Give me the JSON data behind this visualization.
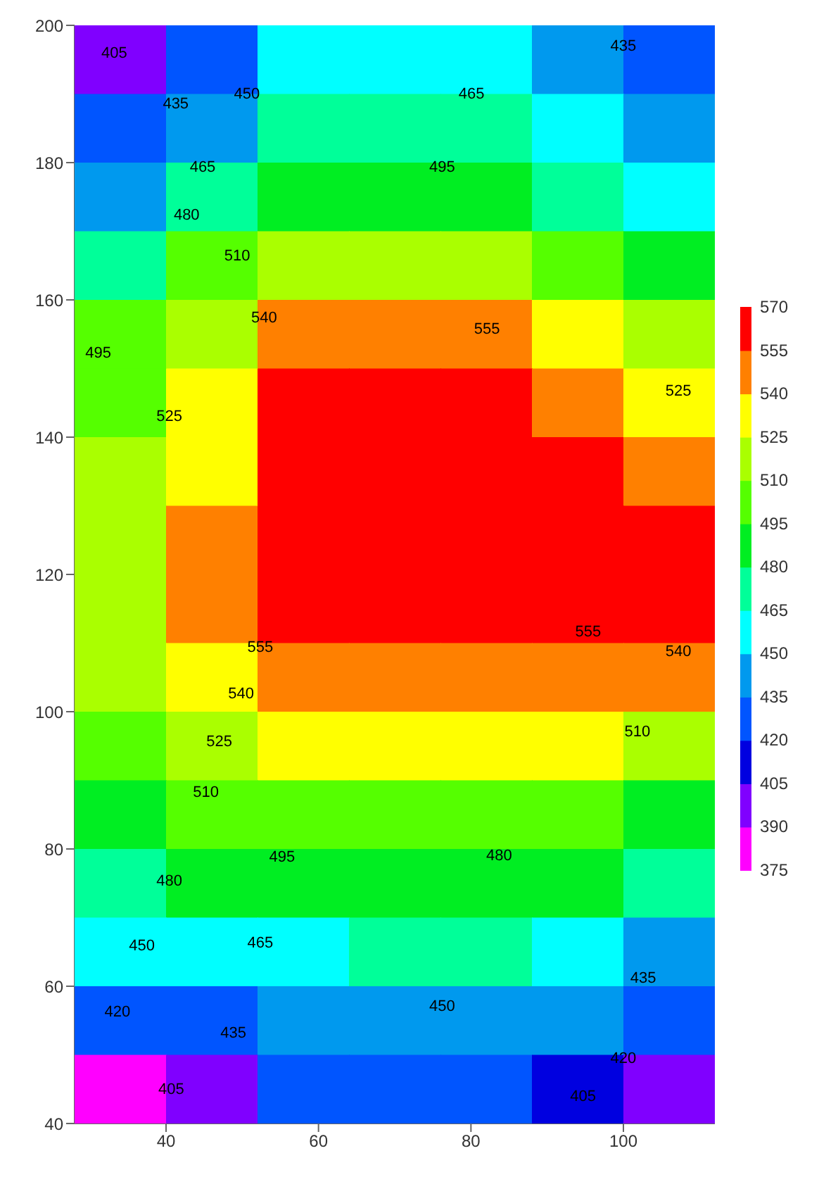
{
  "chart_data": {
    "type": "heatmap",
    "xlim": [
      28,
      112
    ],
    "xticks": [
      40,
      60,
      80,
      100
    ],
    "ylim": [
      40,
      200
    ],
    "yticks": [
      40,
      60,
      80,
      100,
      120,
      140,
      160,
      180,
      200
    ],
    "clim": [
      375,
      570
    ],
    "cticks": [
      375,
      390,
      405,
      420,
      435,
      450,
      465,
      480,
      495,
      510,
      525,
      540,
      555,
      570
    ],
    "colors": [
      "#ff00ff",
      "#8000ff",
      "#0000e0",
      "#0055ff",
      "#0099ee",
      "#00ffff",
      "#00ff99",
      "#00ee22",
      "#55ff00",
      "#aaff00",
      "#ffff00",
      "#ff8000",
      "#ff0000"
    ],
    "cells": [
      [
        400,
        430,
        455,
        460,
        460,
        445,
        425
      ],
      [
        425,
        448,
        468,
        472,
        472,
        458,
        440
      ],
      [
        445,
        470,
        485,
        490,
        490,
        478,
        462
      ],
      [
        470,
        495,
        515,
        520,
        520,
        505,
        490
      ],
      [
        495,
        515,
        540,
        548,
        552,
        535,
        520
      ],
      [
        505,
        530,
        556,
        560,
        560,
        548,
        530
      ],
      [
        512,
        535,
        560,
        565,
        565,
        558,
        548
      ],
      [
        520,
        545,
        560,
        565,
        565,
        565,
        560
      ],
      [
        520,
        545,
        560,
        560,
        560,
        560,
        557
      ],
      [
        510,
        535,
        546,
        548,
        548,
        545,
        540
      ],
      [
        500,
        520,
        528,
        528,
        530,
        525,
        515
      ],
      [
        490,
        500,
        505,
        505,
        505,
        500,
        490
      ],
      [
        478,
        480,
        485,
        488,
        490,
        480,
        465
      ],
      [
        450,
        450,
        462,
        468,
        465,
        450,
        440
      ],
      [
        425,
        430,
        442,
        448,
        448,
        438,
        425
      ],
      [
        385,
        400,
        425,
        428,
        428,
        418,
        400
      ]
    ],
    "annotations": [
      "405",
      "435",
      "450",
      "465",
      "435",
      "465",
      "495",
      "480",
      "510",
      "495",
      "540",
      "555",
      "525",
      "525",
      "555",
      "555",
      "540",
      "540",
      "525",
      "510",
      "510",
      "495",
      "480",
      "480",
      "450",
      "465",
      "435",
      "420",
      "450",
      "435",
      "420",
      "405",
      "405"
    ]
  }
}
